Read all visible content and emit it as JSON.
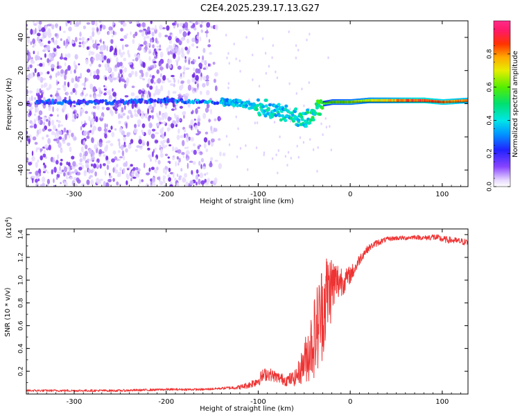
{
  "figure_title": "C2E4.2025.239.17.13.G27",
  "chart_data": [
    {
      "type": "heatmap",
      "title": "C2E4.2025.239.17.13.G27",
      "xlabel": "Height of straight line (km)",
      "ylabel": "Frequency (Hz)",
      "xlim": [
        -352,
        128
      ],
      "ylim": [
        -50,
        50
      ],
      "x_ticks": [
        -300,
        -200,
        -100,
        0,
        100
      ],
      "x_tick_labels": [
        "-300",
        "-200",
        "-100",
        "0",
        "100"
      ],
      "y_ticks": [
        -40,
        -20,
        0,
        20,
        40
      ],
      "y_tick_labels": [
        "-40",
        "-20",
        "0",
        "20",
        "40"
      ],
      "colorbar": {
        "label": "Normalized spectral amplitude",
        "range": [
          0,
          1
        ],
        "ticks": [
          0.0,
          0.2,
          0.4,
          0.6,
          0.8
        ],
        "tick_labels": [
          "0.0",
          "0.2",
          "0.4",
          "0.6",
          "0.8"
        ],
        "colormap": "rainbow (white-purple-blue-cyan-green-yellow-red-magenta)"
      },
      "signal_track": {
        "description": "Tone near 0 Hz, weak/noisy below -140 km, scattered -140 to -30 km, strong and steady above -30 km",
        "x": [
          -340,
          -300,
          -250,
          -200,
          -160,
          -140,
          -120,
          -100,
          -80,
          -70,
          -60,
          -50,
          -40,
          -30,
          -20,
          0,
          20,
          40,
          60,
          80,
          100,
          128
        ],
        "frequency_hz": [
          1,
          1,
          1,
          2,
          1,
          1,
          0,
          -2,
          -4,
          -6,
          -8,
          -10,
          -5,
          0,
          1,
          1,
          2,
          2,
          2,
          2,
          1,
          2
        ],
        "amplitude": [
          0.25,
          0.2,
          0.2,
          0.25,
          0.3,
          0.35,
          0.35,
          0.4,
          0.4,
          0.4,
          0.4,
          0.45,
          0.45,
          0.55,
          0.6,
          0.65,
          0.7,
          0.75,
          0.85,
          0.9,
          0.85,
          0.8
        ]
      },
      "noise_region": {
        "x_range": [
          -352,
          -135
        ],
        "freq_range": [
          -50,
          50
        ],
        "amplitude_range": [
          0.02,
          0.2
        ]
      }
    },
    {
      "type": "line",
      "title": "",
      "xlabel": "Height of straight line (km)",
      "ylabel": "SNR (10 * v/v)",
      "y_exponent_label": "(x10",
      "y_exponent_power": "4",
      "y_exponent_close": ")",
      "xlim": [
        -352,
        128
      ],
      "ylim": [
        0,
        1.45
      ],
      "x_ticks": [
        -300,
        -200,
        -100,
        0,
        100
      ],
      "x_tick_labels": [
        "-300",
        "-200",
        "-100",
        "0",
        "100"
      ],
      "y_ticks": [
        0.2,
        0.4,
        0.6,
        0.8,
        1.0,
        1.2,
        1.4
      ],
      "y_tick_labels": [
        "0.2",
        "0.4",
        "0.6",
        "0.8",
        "1.0",
        "1.2",
        "1.4"
      ],
      "series": [
        {
          "name": "SNR",
          "color": "#ee3333",
          "x": [
            -352,
            -300,
            -250,
            -200,
            -160,
            -140,
            -120,
            -110,
            -100,
            -95,
            -90,
            -80,
            -70,
            -60,
            -55,
            -50,
            -45,
            -40,
            -35,
            -30,
            -25,
            -20,
            -15,
            -10,
            -5,
            0,
            5,
            10,
            15,
            20,
            25,
            30,
            40,
            50,
            60,
            70,
            80,
            90,
            100,
            110,
            120,
            128
          ],
          "y": [
            0.03,
            0.03,
            0.03,
            0.04,
            0.04,
            0.05,
            0.06,
            0.08,
            0.12,
            0.16,
            0.18,
            0.15,
            0.12,
            0.14,
            0.2,
            0.28,
            0.38,
            0.48,
            0.6,
            0.75,
            0.88,
            0.95,
            0.98,
            1.0,
            1.0,
            1.05,
            1.1,
            1.18,
            1.24,
            1.28,
            1.31,
            1.33,
            1.36,
            1.37,
            1.37,
            1.38,
            1.37,
            1.38,
            1.36,
            1.35,
            1.34,
            1.33
          ],
          "noise_amplitude": [
            0.01,
            0.01,
            0.01,
            0.01,
            0.01,
            0.01,
            0.02,
            0.03,
            0.05,
            0.06,
            0.06,
            0.05,
            0.05,
            0.07,
            0.12,
            0.18,
            0.28,
            0.35,
            0.42,
            0.45,
            0.4,
            0.3,
            0.2,
            0.15,
            0.1,
            0.08,
            0.06,
            0.05,
            0.04,
            0.03,
            0.03,
            0.03,
            0.02,
            0.02,
            0.02,
            0.02,
            0.02,
            0.03,
            0.03,
            0.03,
            0.03,
            0.03
          ]
        }
      ]
    }
  ]
}
